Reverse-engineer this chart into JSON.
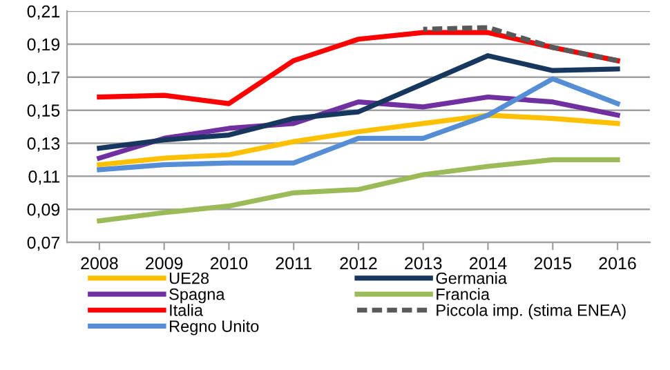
{
  "chart_data": {
    "type": "line",
    "categories": [
      "2008",
      "2009",
      "2010",
      "2011",
      "2012",
      "2013",
      "2014",
      "2015",
      "2016"
    ],
    "series": [
      {
        "name": "UE28",
        "color": "#ffc000",
        "values": [
          0.117,
          0.121,
          0.123,
          0.131,
          0.137,
          0.142,
          0.147,
          0.145,
          0.142
        ]
      },
      {
        "name": "Spagna",
        "color": "#7030a0",
        "values": [
          0.121,
          0.133,
          0.139,
          0.142,
          0.155,
          0.152,
          0.158,
          0.155,
          0.147
        ]
      },
      {
        "name": "Italia",
        "color": "#ff0000",
        "values": [
          0.158,
          0.159,
          0.154,
          0.18,
          0.193,
          0.197,
          0.197,
          0.188,
          0.18
        ]
      },
      {
        "name": "Regno Unito",
        "color": "#558ed5",
        "values": [
          0.114,
          0.117,
          0.118,
          0.118,
          0.133,
          0.133,
          0.147,
          0.169,
          0.154
        ]
      },
      {
        "name": "Germania",
        "color": "#17375e",
        "values": [
          0.127,
          0.132,
          0.135,
          0.145,
          0.149,
          0.166,
          0.183,
          0.174,
          0.175
        ]
      },
      {
        "name": "Francia",
        "color": "#9bbb59",
        "values": [
          0.083,
          0.088,
          0.092,
          0.1,
          0.102,
          0.111,
          0.116,
          0.12,
          0.12
        ]
      },
      {
        "name": "Piccola imp. (stima ENEA)",
        "color": "#595959",
        "line_style": "dashed",
        "values": [
          null,
          null,
          null,
          null,
          null,
          0.199,
          0.2,
          0.188,
          0.18
        ]
      }
    ],
    "ylim": [
      0.07,
      0.21
    ],
    "yticks": [
      {
        "value": 0.07,
        "label": "0,07"
      },
      {
        "value": 0.09,
        "label": "0,09"
      },
      {
        "value": 0.11,
        "label": "0,11"
      },
      {
        "value": 0.13,
        "label": "0,13"
      },
      {
        "value": 0.15,
        "label": "0,15"
      },
      {
        "value": 0.17,
        "label": "0,17"
      },
      {
        "value": 0.19,
        "label": "0,19"
      },
      {
        "value": 0.21,
        "label": "0,21"
      }
    ],
    "grid": "y",
    "legend": "bottom",
    "marker": "none",
    "line_style": "solid"
  }
}
